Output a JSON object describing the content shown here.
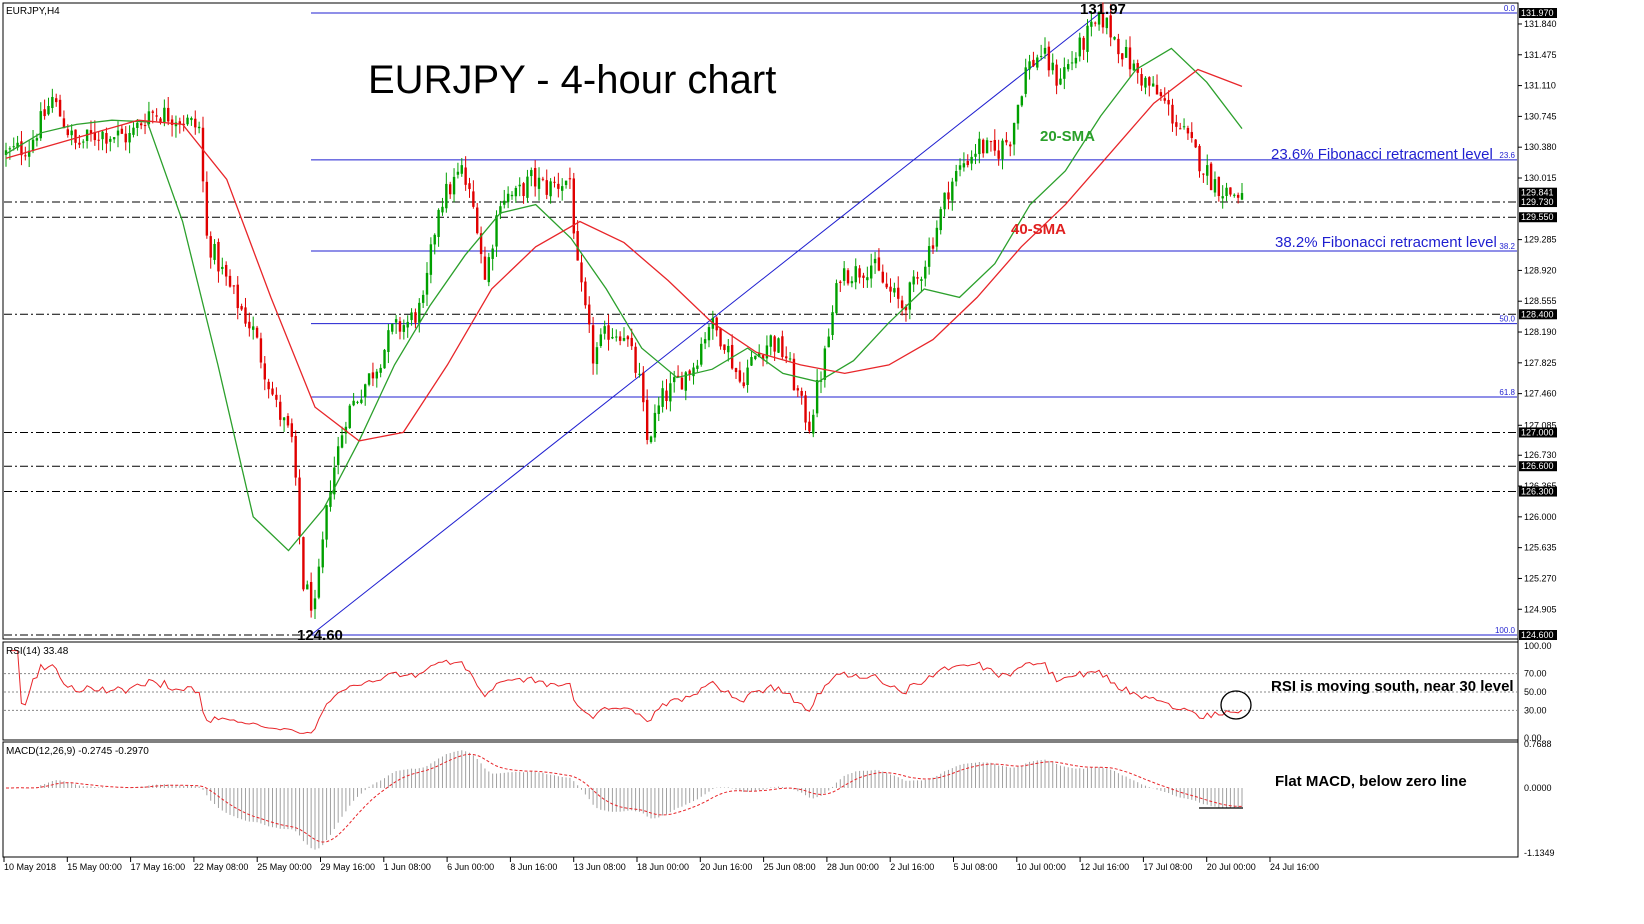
{
  "window": {
    "symbol_label": "EURJPY,H4"
  },
  "annotations": {
    "title": "EURJPY - 4-hour chart",
    "sma20_label": "20-SMA",
    "sma40_label": "40-SMA",
    "fib236_label": "23.6% Fibonacci retracment level",
    "fib382_label": "38.2% Fibonacci retracment level",
    "high_label": "131.97",
    "low_label": "124.60",
    "rsi_note": "RSI is moving south, near 30 level",
    "macd_note": "Flat MACD, below zero line"
  },
  "colors": {
    "bull_candle": "#00a000",
    "bear_candle": "#e00000",
    "sma20": "#2ca02c",
    "sma40": "#e8262a",
    "fib_lines": "#1f1fd0",
    "rsi_line": "#e8262a",
    "macd_hist": "#a0a0a0",
    "macd_signal": "#e8262a",
    "sma20_text": "#2aa02a",
    "sma40_text": "#e02020",
    "fib_text": "#1f1fd0"
  },
  "chart_data": [
    {
      "type": "candlestick",
      "title": "EURJPY - 4-hour chart",
      "ylim": [
        124.5,
        132.1
      ],
      "price_axis_ticks": [
        "131.840",
        "131.475",
        "131.110",
        "130.745",
        "130.380",
        "130.015",
        "129.285",
        "128.920",
        "128.555",
        "128.190",
        "127.825",
        "127.460",
        "127.085",
        "126.730",
        "126.365",
        "126.000",
        "125.635",
        "125.270",
        "124.905"
      ],
      "price_axis_highlight": [
        "131.970",
        "129.841",
        "129.730",
        "129.550",
        "128.400",
        "127.000",
        "126.600",
        "126.300",
        "124.600"
      ],
      "x_date_labels": [
        "10 May 2018",
        "15 May 00:00",
        "17 May 16:00",
        "22 May 08:00",
        "25 May 00:00",
        "29 May 16:00",
        "1 Jun 08:00",
        "6 Jun 00:00",
        "8 Jun 16:00",
        "13 Jun 08:00",
        "18 Jun 00:00",
        "20 Jun 16:00",
        "25 Jun 08:00",
        "28 Jun 00:00",
        "2 Jul 16:00",
        "5 Jul 08:00",
        "10 Jul 00:00",
        "12 Jul 16:00",
        "17 Jul 08:00",
        "20 Jul 00:00",
        "24 Jul 16:00"
      ],
      "horizontal_levels": [
        129.73,
        129.55,
        128.4,
        127.0,
        126.6,
        126.3,
        124.6
      ],
      "fibonacci": {
        "high": 131.97,
        "low": 124.6,
        "levels": [
          {
            "label": "0.0",
            "price": 131.97
          },
          {
            "label": "23.6",
            "price": 130.23
          },
          {
            "label": "38.2",
            "price": 129.15
          },
          {
            "label": "50.0",
            "price": 128.29
          },
          {
            "label": "61.8",
            "price": 127.42
          },
          {
            "label": "100.0",
            "price": 124.6
          }
        ]
      },
      "anchor_points": [
        {
          "t": 0,
          "p": 130.3
        },
        {
          "t": 6,
          "p": 130.4
        },
        {
          "t": 12,
          "p": 130.95
        },
        {
          "t": 18,
          "p": 130.4
        },
        {
          "t": 24,
          "p": 130.55
        },
        {
          "t": 32,
          "p": 130.5
        },
        {
          "t": 37,
          "p": 130.8
        },
        {
          "t": 44,
          "p": 130.75
        },
        {
          "t": 50,
          "p": 130.6
        },
        {
          "t": 52,
          "p": 129.3
        },
        {
          "t": 58,
          "p": 128.7
        },
        {
          "t": 64,
          "p": 128.2
        },
        {
          "t": 70,
          "p": 127.3
        },
        {
          "t": 74,
          "p": 126.9
        },
        {
          "t": 77,
          "p": 125.2
        },
        {
          "t": 80,
          "p": 124.9
        },
        {
          "t": 84,
          "p": 126.4
        },
        {
          "t": 88,
          "p": 127.2
        },
        {
          "t": 92,
          "p": 127.5
        },
        {
          "t": 96,
          "p": 127.8
        },
        {
          "t": 100,
          "p": 128.2
        },
        {
          "t": 104,
          "p": 128.3
        },
        {
          "t": 108,
          "p": 128.5
        },
        {
          "t": 112,
          "p": 129.7
        },
        {
          "t": 118,
          "p": 130.1
        },
        {
          "t": 122,
          "p": 129.5
        },
        {
          "t": 124,
          "p": 128.8
        },
        {
          "t": 128,
          "p": 129.8
        },
        {
          "t": 132,
          "p": 129.8
        },
        {
          "t": 136,
          "p": 130.0
        },
        {
          "t": 140,
          "p": 129.9
        },
        {
          "t": 146,
          "p": 130.0
        },
        {
          "t": 148,
          "p": 128.9
        },
        {
          "t": 152,
          "p": 127.9
        },
        {
          "t": 156,
          "p": 128.2
        },
        {
          "t": 160,
          "p": 128.2
        },
        {
          "t": 164,
          "p": 127.6
        },
        {
          "t": 166,
          "p": 126.9
        },
        {
          "t": 170,
          "p": 127.4
        },
        {
          "t": 174,
          "p": 127.6
        },
        {
          "t": 178,
          "p": 127.8
        },
        {
          "t": 182,
          "p": 128.3
        },
        {
          "t": 186,
          "p": 128.1
        },
        {
          "t": 190,
          "p": 127.6
        },
        {
          "t": 194,
          "p": 127.9
        },
        {
          "t": 198,
          "p": 128.1
        },
        {
          "t": 202,
          "p": 127.9
        },
        {
          "t": 206,
          "p": 127.3
        },
        {
          "t": 208,
          "p": 127.1
        },
        {
          "t": 212,
          "p": 127.9
        },
        {
          "t": 216,
          "p": 128.9
        },
        {
          "t": 220,
          "p": 128.9
        },
        {
          "t": 224,
          "p": 129.0
        },
        {
          "t": 228,
          "p": 128.7
        },
        {
          "t": 232,
          "p": 128.5
        },
        {
          "t": 236,
          "p": 128.8
        },
        {
          "t": 240,
          "p": 129.3
        },
        {
          "t": 244,
          "p": 129.9
        },
        {
          "t": 248,
          "p": 130.2
        },
        {
          "t": 252,
          "p": 130.4
        },
        {
          "t": 256,
          "p": 130.3
        },
        {
          "t": 260,
          "p": 130.5
        },
        {
          "t": 264,
          "p": 131.3
        },
        {
          "t": 268,
          "p": 131.5
        },
        {
          "t": 272,
          "p": 131.2
        },
        {
          "t": 276,
          "p": 131.4
        },
        {
          "t": 280,
          "p": 131.7
        },
        {
          "t": 284,
          "p": 131.9
        },
        {
          "t": 288,
          "p": 131.6
        },
        {
          "t": 292,
          "p": 131.3
        },
        {
          "t": 296,
          "p": 131.1
        },
        {
          "t": 300,
          "p": 130.9
        },
        {
          "t": 304,
          "p": 130.6
        },
        {
          "t": 308,
          "p": 130.3
        },
        {
          "t": 312,
          "p": 130.0
        },
        {
          "t": 316,
          "p": 129.85
        },
        {
          "t": 320,
          "p": 129.8
        }
      ],
      "series": [
        {
          "name": "20-SMA",
          "values": [
            130.3,
            130.55,
            130.65,
            130.7,
            130.68,
            129.5,
            127.8,
            126.0,
            125.6,
            126.1,
            126.9,
            127.8,
            128.5,
            129.1,
            129.6,
            129.7,
            129.3,
            128.7,
            128.0,
            127.65,
            127.75,
            128.0,
            127.7,
            127.6,
            127.85,
            128.3,
            128.7,
            128.6,
            129.0,
            129.7,
            130.1,
            130.75,
            131.3,
            131.55,
            131.15,
            130.6
          ]
        },
        {
          "name": "40-SMA",
          "values": [
            130.25,
            130.4,
            130.55,
            130.7,
            130.65,
            130.0,
            128.6,
            127.3,
            126.9,
            127.0,
            127.8,
            128.7,
            129.2,
            129.5,
            129.25,
            128.8,
            128.3,
            127.95,
            127.8,
            127.7,
            127.8,
            128.1,
            128.6,
            129.2,
            129.7,
            130.3,
            130.9,
            131.3,
            131.1
          ]
        }
      ]
    },
    {
      "type": "line",
      "title": "RSI(14) 33.48",
      "ylim": [
        0,
        100
      ],
      "axis_ticks": [
        "100.00",
        "70.00",
        "50.00",
        "30.00",
        "0.00"
      ],
      "levels": [
        70,
        50,
        30
      ],
      "last_value": 33.48
    },
    {
      "type": "bar",
      "title": "MACD(12,26,9) -0.2745 -0.2970",
      "ylim": [
        -1.1349,
        0.7688
      ],
      "axis_ticks": [
        "0.7688",
        "0.0000",
        "-1.1349"
      ],
      "macd_last": -0.2745,
      "signal_last": -0.297
    }
  ]
}
